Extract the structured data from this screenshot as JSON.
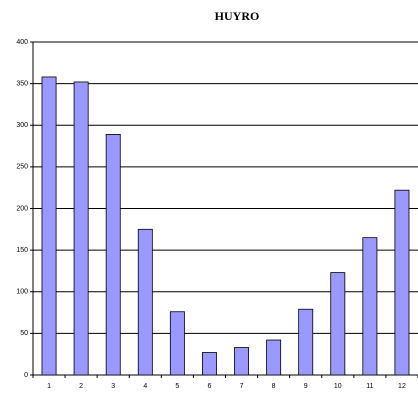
{
  "chart_data": {
    "type": "bar",
    "title": "HUYRO",
    "categories": [
      "1",
      "2",
      "3",
      "4",
      "5",
      "6",
      "7",
      "8",
      "9",
      "10",
      "11",
      "12"
    ],
    "values": [
      358,
      352,
      289,
      175,
      76,
      27,
      33,
      42,
      79,
      123,
      165,
      222
    ],
    "color": "#9999ff",
    "ylim": [
      0,
      400
    ],
    "yticks": [
      0,
      50,
      100,
      150,
      200,
      250,
      300,
      350,
      400
    ],
    "grid": true
  }
}
